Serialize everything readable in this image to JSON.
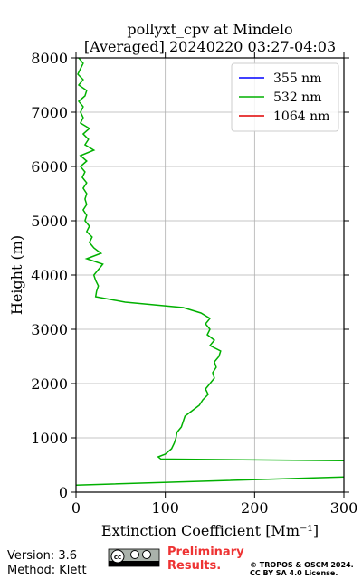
{
  "chart_data": {
    "type": "line",
    "title": "pollyxt_cpv at Mindelo",
    "subtitle": "[Averaged] 20240220 03:27-04:03",
    "x_label": "Extinction Coefficient [Mm⁻¹]",
    "y_label": "Height (m)",
    "xlim": [
      0,
      300
    ],
    "xticks": [
      0,
      100,
      200,
      300
    ],
    "ylim": [
      0,
      8000
    ],
    "yticks": [
      0,
      1000,
      2000,
      3000,
      4000,
      5000,
      6000,
      7000,
      8000
    ],
    "grid": true,
    "legend": "upper right",
    "heights": [
      130,
      280,
      430,
      580,
      610,
      650,
      700,
      800,
      900,
      1000,
      1100,
      1200,
      1300,
      1400,
      1500,
      1600,
      1700,
      1800,
      1900,
      2000,
      2100,
      2200,
      2300,
      2400,
      2500,
      2600,
      2700,
      2800,
      2900,
      3000,
      3100,
      3200,
      3300,
      3400,
      3500,
      3600,
      3700,
      3800,
      3900,
      4000,
      4100,
      4200,
      4300,
      4400,
      4500,
      4600,
      4700,
      4800,
      4900,
      5000,
      5100,
      5200,
      5300,
      5400,
      5500,
      5600,
      5700,
      5800,
      5900,
      6000,
      6100,
      6200,
      6300,
      6400,
      6500,
      6600,
      6700,
      6800,
      6900,
      7000,
      7100,
      7200,
      7300,
      7400,
      7500,
      7600,
      7700,
      7800,
      7900,
      8000
    ],
    "series": [
      {
        "name": "355 nm",
        "color": "#0000ff",
        "values": [
          null,
          null,
          null,
          null,
          null,
          null,
          null,
          null,
          null,
          null,
          null,
          null,
          null,
          null,
          null,
          null,
          null,
          null,
          null,
          null,
          null,
          null,
          null,
          null,
          null,
          null,
          null,
          null,
          null,
          null,
          null,
          null,
          null,
          null,
          null,
          null,
          null,
          null,
          null,
          null,
          null,
          null,
          null,
          null,
          null,
          null,
          null,
          null,
          null,
          null,
          null,
          null,
          null,
          null,
          null,
          null,
          null,
          null,
          null,
          null,
          null,
          null,
          null,
          null,
          null,
          null,
          null,
          null,
          null,
          null,
          null,
          null,
          null,
          null,
          null,
          null,
          null,
          null,
          null,
          null
        ]
      },
      {
        "name": "532 nm",
        "color": "#00b000",
        "values": [
          0,
          300,
          null,
          300,
          95,
          92,
          100,
          107,
          110,
          112,
          113,
          118,
          120,
          122,
          130,
          138,
          142,
          148,
          145,
          150,
          155,
          153,
          157,
          155,
          160,
          162,
          150,
          155,
          147,
          150,
          145,
          150,
          140,
          120,
          55,
          22,
          23,
          25,
          22,
          20,
          25,
          30,
          12,
          28,
          20,
          15,
          18,
          12,
          15,
          10,
          12,
          8,
          12,
          10,
          12,
          8,
          12,
          7,
          10,
          5,
          12,
          5,
          20,
          10,
          14,
          8,
          15,
          5,
          8,
          5,
          8,
          3,
          10,
          12,
          3,
          8,
          2,
          5,
          8,
          3
        ]
      },
      {
        "name": "1064 nm",
        "color": "#e00000",
        "values": [
          null,
          null,
          null,
          null,
          null,
          null,
          null,
          null,
          null,
          null,
          null,
          null,
          null,
          null,
          null,
          null,
          null,
          null,
          null,
          null,
          null,
          null,
          null,
          null,
          null,
          null,
          null,
          null,
          null,
          null,
          null,
          null,
          null,
          null,
          null,
          null,
          null,
          null,
          null,
          null,
          null,
          null,
          null,
          null,
          null,
          null,
          null,
          null,
          null,
          null,
          null,
          null,
          null,
          null,
          null,
          null,
          null,
          null,
          null,
          null,
          null,
          null,
          null,
          null,
          null,
          null,
          null,
          null,
          null,
          null,
          null,
          null,
          null,
          null,
          null,
          null,
          null,
          null,
          null,
          null
        ]
      }
    ]
  },
  "footer": {
    "version": "Version: 3.6",
    "method": "Method: Klett",
    "notice": [
      "Preliminary",
      "Results."
    ],
    "copyright": [
      "© TROPOS & OSCM 2024.",
      "CC BY SA 4.0 License."
    ]
  }
}
